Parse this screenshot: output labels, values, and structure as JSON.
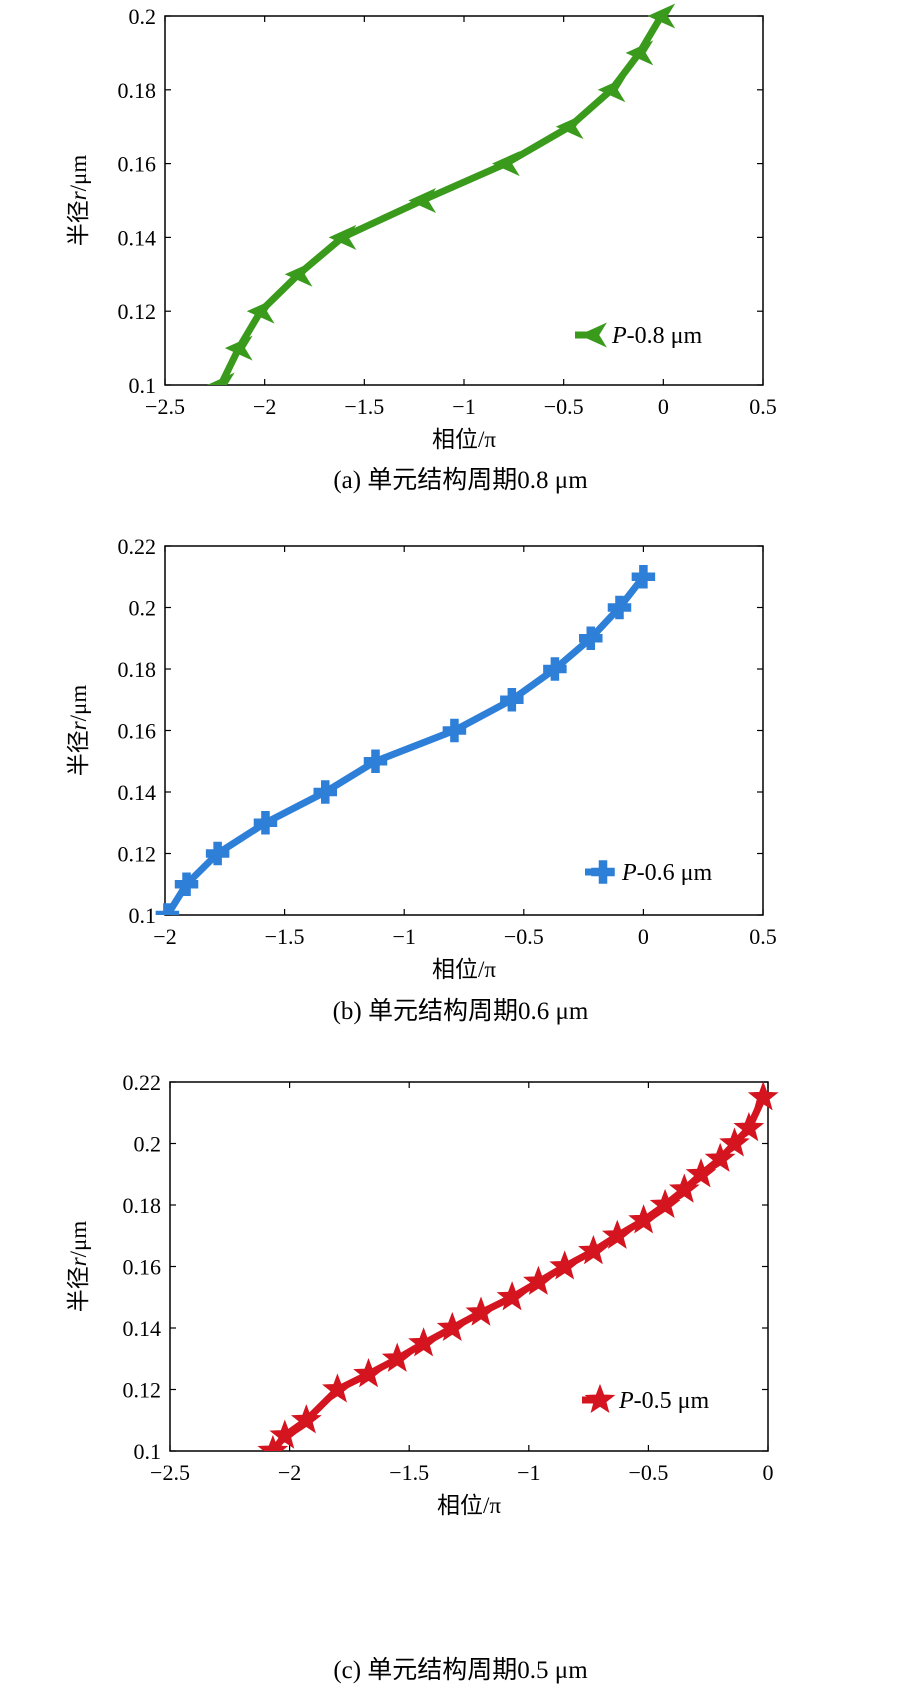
{
  "chart_data": [
    {
      "type": "line",
      "caption": "(a) 单元结构周期0.8 μm",
      "xlabel": "相位/π",
      "ylabel_prefix": "半径",
      "ylabel_var": "r",
      "ylabel_unit": "/μm",
      "xlim": [
        -2.5,
        0.5
      ],
      "ylim": [
        0.1,
        0.2
      ],
      "xticks": [
        -2.5,
        -2,
        -1.5,
        -1,
        -0.5,
        0,
        0.5
      ],
      "xtick_labels": [
        "−2.5",
        "−2",
        "−1.5",
        "−1",
        "−0.5",
        "0",
        "0.5"
      ],
      "yticks": [
        0.1,
        0.12,
        0.14,
        0.16,
        0.18,
        0.2
      ],
      "ytick_labels": [
        "0.1",
        "0.12",
        "0.14",
        "0.16",
        "0.18",
        "0.2"
      ],
      "grid": false,
      "legend_position": "bottom-right",
      "marker": "left-triangle",
      "series": [
        {
          "name_var": "P",
          "name_rest": "-0.8 μm",
          "color": "#3a9a1c",
          "x": [
            -2.22,
            -2.13,
            -2.02,
            -1.83,
            -1.61,
            -1.21,
            -0.79,
            -0.47,
            -0.26,
            -0.12,
            -0.01
          ],
          "y": [
            0.1,
            0.11,
            0.12,
            0.13,
            0.14,
            0.15,
            0.16,
            0.17,
            0.18,
            0.19,
            0.2
          ]
        }
      ]
    },
    {
      "type": "line",
      "caption": "(b) 单元结构周期0.6 μm",
      "xlabel": "相位/π",
      "ylabel_prefix": "半径",
      "ylabel_var": "r",
      "ylabel_unit": "/μm",
      "xlim": [
        -2,
        0.5
      ],
      "ylim": [
        0.1,
        0.22
      ],
      "xticks": [
        -2,
        -1.5,
        -1,
        -0.5,
        0,
        0.5
      ],
      "xtick_labels": [
        "−2",
        "−1.5",
        "−1",
        "−0.5",
        "0",
        "0.5"
      ],
      "yticks": [
        0.1,
        0.12,
        0.14,
        0.16,
        0.18,
        0.2,
        0.22
      ],
      "ytick_labels": [
        "0.1",
        "0.12",
        "0.14",
        "0.16",
        "0.18",
        "0.2",
        "0.22"
      ],
      "grid": false,
      "legend_position": "bottom-right",
      "marker": "plus",
      "series": [
        {
          "name_var": "P",
          "name_rest": "-0.6 μm",
          "color": "#2e7fd8",
          "x": [
            -1.99,
            -1.91,
            -1.78,
            -1.58,
            -1.33,
            -1.12,
            -0.79,
            -0.55,
            -0.37,
            -0.22,
            -0.1,
            0.0
          ],
          "y": [
            0.1,
            0.11,
            0.12,
            0.13,
            0.14,
            0.15,
            0.16,
            0.17,
            0.18,
            0.19,
            0.2,
            0.21
          ]
        }
      ]
    },
    {
      "type": "line",
      "caption": "(c) 单元结构周期0.5 μm",
      "xlabel": "相位/π",
      "ylabel_prefix": "半径",
      "ylabel_var": "r",
      "ylabel_unit": "/μm",
      "xlim": [
        -2.5,
        0
      ],
      "ylim": [
        0.1,
        0.22
      ],
      "xticks": [
        -2.5,
        -2,
        -1.5,
        -1,
        -0.5,
        0
      ],
      "xtick_labels": [
        "−2.5",
        "−2",
        "−1.5",
        "−1",
        "−0.5",
        "0"
      ],
      "yticks": [
        0.1,
        0.12,
        0.14,
        0.16,
        0.18,
        0.2,
        0.22
      ],
      "ytick_labels": [
        "0.1",
        "0.12",
        "0.14",
        "0.16",
        "0.18",
        "0.2",
        "0.22"
      ],
      "grid": false,
      "legend_position": "bottom-right",
      "marker": "star",
      "series": [
        {
          "name_var": "P",
          "name_rest": "-0.5 μm",
          "color": "#d4141e",
          "x": [
            -2.07,
            -2.02,
            -1.93,
            -1.8,
            -1.67,
            -1.55,
            -1.44,
            -1.32,
            -1.2,
            -1.07,
            -0.96,
            -0.85,
            -0.73,
            -0.63,
            -0.52,
            -0.43,
            -0.35,
            -0.28,
            -0.2,
            -0.14,
            -0.08,
            -0.02
          ],
          "y": [
            0.1,
            0.105,
            0.11,
            0.12,
            0.125,
            0.13,
            0.135,
            0.14,
            0.145,
            0.15,
            0.155,
            0.16,
            0.165,
            0.17,
            0.175,
            0.18,
            0.185,
            0.19,
            0.195,
            0.2,
            0.205,
            0.215
          ]
        }
      ]
    }
  ]
}
